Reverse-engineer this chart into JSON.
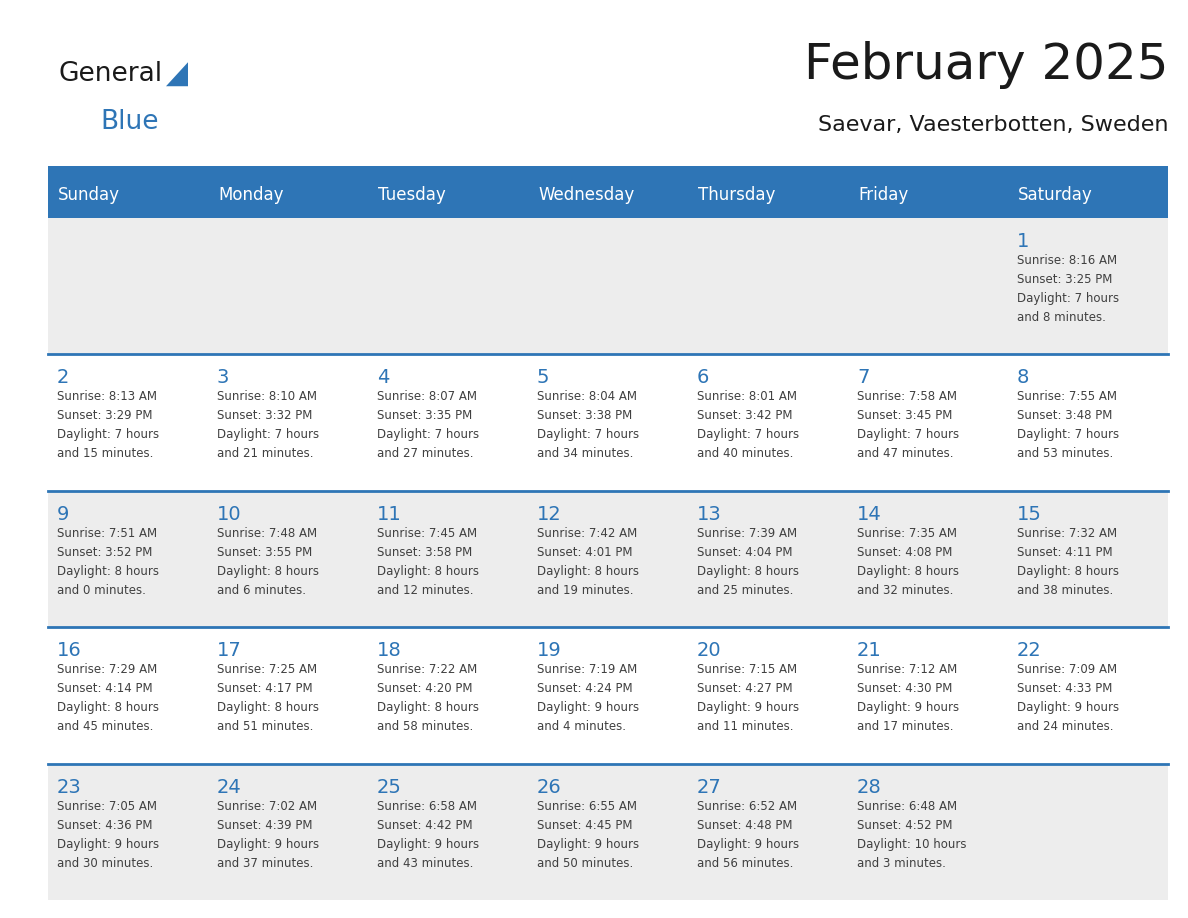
{
  "title": "February 2025",
  "subtitle": "Saevar, Vaesterbotten, Sweden",
  "header_color": "#2E75B6",
  "header_text_color": "#FFFFFF",
  "day_names": [
    "Sunday",
    "Monday",
    "Tuesday",
    "Wednesday",
    "Thursday",
    "Friday",
    "Saturday"
  ],
  "cell_bg_even": "#EDEDED",
  "cell_bg_odd": "#FFFFFF",
  "separator_color": "#2E75B6",
  "day_number_color": "#2E75B6",
  "text_color": "#404040",
  "logo_general_color": "#1A1A1A",
  "logo_blue_color": "#2E75B6",
  "weeks": [
    [
      {
        "day": null,
        "info": null
      },
      {
        "day": null,
        "info": null
      },
      {
        "day": null,
        "info": null
      },
      {
        "day": null,
        "info": null
      },
      {
        "day": null,
        "info": null
      },
      {
        "day": null,
        "info": null
      },
      {
        "day": 1,
        "info": "Sunrise: 8:16 AM\nSunset: 3:25 PM\nDaylight: 7 hours\nand 8 minutes."
      }
    ],
    [
      {
        "day": 2,
        "info": "Sunrise: 8:13 AM\nSunset: 3:29 PM\nDaylight: 7 hours\nand 15 minutes."
      },
      {
        "day": 3,
        "info": "Sunrise: 8:10 AM\nSunset: 3:32 PM\nDaylight: 7 hours\nand 21 minutes."
      },
      {
        "day": 4,
        "info": "Sunrise: 8:07 AM\nSunset: 3:35 PM\nDaylight: 7 hours\nand 27 minutes."
      },
      {
        "day": 5,
        "info": "Sunrise: 8:04 AM\nSunset: 3:38 PM\nDaylight: 7 hours\nand 34 minutes."
      },
      {
        "day": 6,
        "info": "Sunrise: 8:01 AM\nSunset: 3:42 PM\nDaylight: 7 hours\nand 40 minutes."
      },
      {
        "day": 7,
        "info": "Sunrise: 7:58 AM\nSunset: 3:45 PM\nDaylight: 7 hours\nand 47 minutes."
      },
      {
        "day": 8,
        "info": "Sunrise: 7:55 AM\nSunset: 3:48 PM\nDaylight: 7 hours\nand 53 minutes."
      }
    ],
    [
      {
        "day": 9,
        "info": "Sunrise: 7:51 AM\nSunset: 3:52 PM\nDaylight: 8 hours\nand 0 minutes."
      },
      {
        "day": 10,
        "info": "Sunrise: 7:48 AM\nSunset: 3:55 PM\nDaylight: 8 hours\nand 6 minutes."
      },
      {
        "day": 11,
        "info": "Sunrise: 7:45 AM\nSunset: 3:58 PM\nDaylight: 8 hours\nand 12 minutes."
      },
      {
        "day": 12,
        "info": "Sunrise: 7:42 AM\nSunset: 4:01 PM\nDaylight: 8 hours\nand 19 minutes."
      },
      {
        "day": 13,
        "info": "Sunrise: 7:39 AM\nSunset: 4:04 PM\nDaylight: 8 hours\nand 25 minutes."
      },
      {
        "day": 14,
        "info": "Sunrise: 7:35 AM\nSunset: 4:08 PM\nDaylight: 8 hours\nand 32 minutes."
      },
      {
        "day": 15,
        "info": "Sunrise: 7:32 AM\nSunset: 4:11 PM\nDaylight: 8 hours\nand 38 minutes."
      }
    ],
    [
      {
        "day": 16,
        "info": "Sunrise: 7:29 AM\nSunset: 4:14 PM\nDaylight: 8 hours\nand 45 minutes."
      },
      {
        "day": 17,
        "info": "Sunrise: 7:25 AM\nSunset: 4:17 PM\nDaylight: 8 hours\nand 51 minutes."
      },
      {
        "day": 18,
        "info": "Sunrise: 7:22 AM\nSunset: 4:20 PM\nDaylight: 8 hours\nand 58 minutes."
      },
      {
        "day": 19,
        "info": "Sunrise: 7:19 AM\nSunset: 4:24 PM\nDaylight: 9 hours\nand 4 minutes."
      },
      {
        "day": 20,
        "info": "Sunrise: 7:15 AM\nSunset: 4:27 PM\nDaylight: 9 hours\nand 11 minutes."
      },
      {
        "day": 21,
        "info": "Sunrise: 7:12 AM\nSunset: 4:30 PM\nDaylight: 9 hours\nand 17 minutes."
      },
      {
        "day": 22,
        "info": "Sunrise: 7:09 AM\nSunset: 4:33 PM\nDaylight: 9 hours\nand 24 minutes."
      }
    ],
    [
      {
        "day": 23,
        "info": "Sunrise: 7:05 AM\nSunset: 4:36 PM\nDaylight: 9 hours\nand 30 minutes."
      },
      {
        "day": 24,
        "info": "Sunrise: 7:02 AM\nSunset: 4:39 PM\nDaylight: 9 hours\nand 37 minutes."
      },
      {
        "day": 25,
        "info": "Sunrise: 6:58 AM\nSunset: 4:42 PM\nDaylight: 9 hours\nand 43 minutes."
      },
      {
        "day": 26,
        "info": "Sunrise: 6:55 AM\nSunset: 4:45 PM\nDaylight: 9 hours\nand 50 minutes."
      },
      {
        "day": 27,
        "info": "Sunrise: 6:52 AM\nSunset: 4:48 PM\nDaylight: 9 hours\nand 56 minutes."
      },
      {
        "day": 28,
        "info": "Sunrise: 6:48 AM\nSunset: 4:52 PM\nDaylight: 10 hours\nand 3 minutes."
      },
      {
        "day": null,
        "info": null
      }
    ]
  ]
}
